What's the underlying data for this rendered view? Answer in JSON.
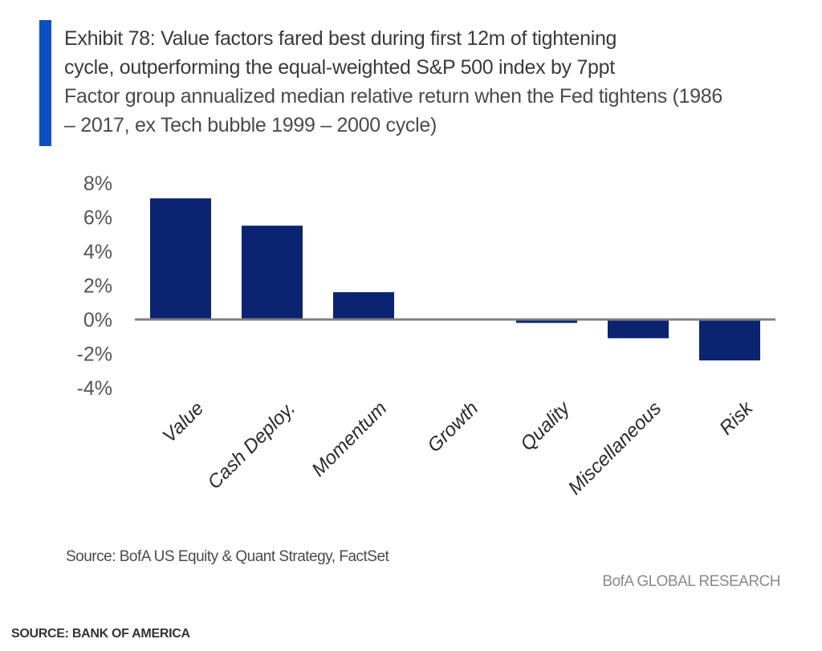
{
  "exhibit": {
    "title_lines": [
      "Exhibit 78: Value factors fared best during first 12m of tightening",
      "cycle, outperforming the equal-weighted S&P 500 index by 7ppt"
    ],
    "subtitle_lines": [
      "Factor group annualized median relative return when the Fed tightens (1986",
      "– 2017, ex Tech bubble 1999 – 2000 cycle)"
    ],
    "source": "Source: BofA US Equity & Quant Strategy, FactSet",
    "brand": "BofA GLOBAL RESEARCH"
  },
  "page_source": "SOURCE: BANK OF AMERICA",
  "colors": {
    "bar": "#0b2472",
    "accent": "#0a4fc4",
    "zero_line": "#808080"
  },
  "chart_data": {
    "type": "bar",
    "title": "Exhibit 78: Value factors fared best during first 12m of tightening cycle, outperforming the equal-weighted S&P 500 index by 7ppt",
    "subtitle": "Factor group annualized median relative return when the Fed tightens (1986 – 2017, ex Tech bubble 1999 – 2000 cycle)",
    "categories": [
      "Value",
      "Cash Deploy.",
      "Momentum",
      "Growth",
      "Quality",
      "Miscellaneous",
      "Risk"
    ],
    "values": [
      7.1,
      5.5,
      1.6,
      0.05,
      -0.2,
      -1.1,
      -2.4
    ],
    "unit": "%",
    "xlabel": "",
    "ylabel": "",
    "ylim": [
      -4,
      8
    ],
    "yticks": [
      8,
      6,
      4,
      2,
      0,
      -2,
      -4
    ],
    "ytick_labels": [
      "8%",
      "6%",
      "4%",
      "2%",
      "0%",
      "-2%",
      "-4%"
    ],
    "grid": false,
    "legend": "none"
  }
}
